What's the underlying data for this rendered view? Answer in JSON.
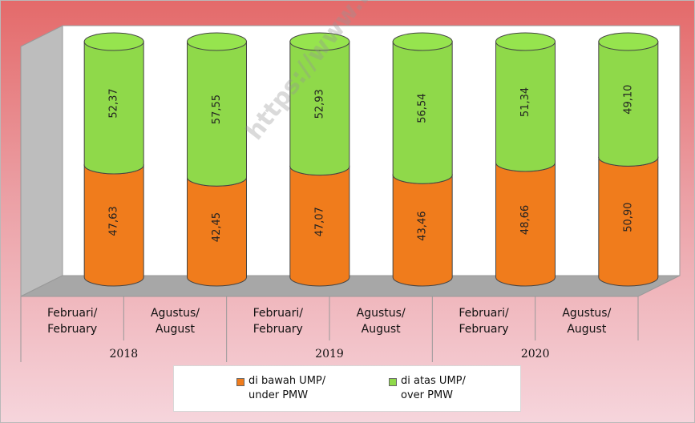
{
  "chart_data": {
    "type": "bar",
    "stacked": true,
    "categories": [
      "Februari/ February",
      "Agustus/ August",
      "Februari/ February",
      "Agustus/ August",
      "Februari/ February",
      "Agustus/ August"
    ],
    "category_lines": [
      [
        "Februari/",
        "February"
      ],
      [
        "Agustus/",
        "August"
      ],
      [
        "Februari/",
        "February"
      ],
      [
        "Agustus/",
        "August"
      ],
      [
        "Februari/",
        "February"
      ],
      [
        "Agustus/",
        "August"
      ]
    ],
    "value_labels": {
      "series0": [
        "47,63",
        "42,45",
        "47,07",
        "43,46",
        "48,66",
        "50,90"
      ],
      "series1": [
        "52,37",
        "57,55",
        "52,93",
        "56,54",
        "51,34",
        "49,10"
      ]
    },
    "groups": [
      {
        "label": "2018",
        "count": 2
      },
      {
        "label": "2019",
        "count": 2
      },
      {
        "label": "2020",
        "count": 2
      }
    ],
    "series": [
      {
        "name": "di bawah UMP/ under PMW",
        "name_lines": [
          "di bawah UMP/",
          "under PMW"
        ],
        "values": [
          47.63,
          42.45,
          47.07,
          43.46,
          48.66,
          50.9
        ],
        "color": "#f07c1c"
      },
      {
        "name": "di atas UMP/ over PMW",
        "name_lines": [
          "di atas UMP/",
          "over PMW"
        ],
        "values": [
          52.37,
          57.55,
          52.93,
          56.54,
          51.34,
          49.1
        ],
        "color": "#8fd94a"
      }
    ],
    "ylim": [
      0,
      100
    ],
    "grid": false,
    "legend_position": "bottom"
  },
  "watermark": "https://www.bps.go.id",
  "colors": {
    "background_top": "#e46a6a",
    "background_bottom": "#f6d5dc",
    "plot_face": "#ffffff",
    "plot_wall": "#bdbdbd",
    "plot_floor": "#a7a7a7"
  }
}
